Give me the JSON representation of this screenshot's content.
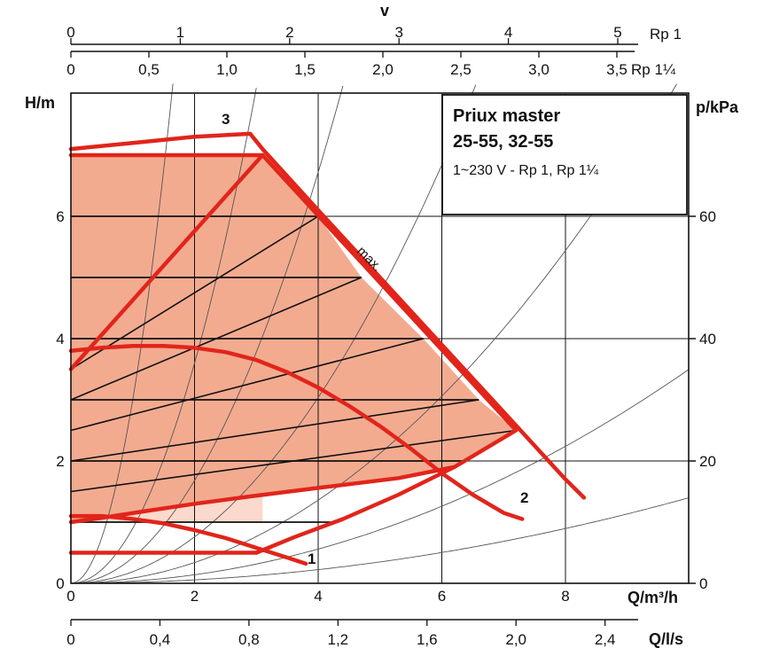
{
  "chart_data": {
    "type": "line",
    "title": "Priux master",
    "subtitle_models": "25-55, 32-55",
    "subtitle_supply": "1~230 V - Rp 1, Rp 1¼",
    "xlabel": "Q/m³/h",
    "xlabel_ls": "Q/l/s",
    "ylabel": "H/m",
    "ylabel_right": "p/kPa",
    "velocity_label": "v",
    "xlim": [
      0,
      10
    ],
    "ylim": [
      0,
      8
    ],
    "grid": true,
    "x_ticks": [
      "0",
      "2",
      "4",
      "6",
      "8"
    ],
    "y_ticks": [
      "0",
      "2",
      "4",
      "6"
    ],
    "kpa_ticks": [
      "0",
      "20",
      "40",
      "60"
    ],
    "ls_ticks": [
      "0",
      "0,4",
      "0,8",
      "1,2",
      "1,6",
      "2,0",
      "2,4"
    ],
    "velocity_rp1": {
      "pipe": "Rp 1",
      "ticks": [
        "0",
        "1",
        "2",
        "3",
        "4",
        "5"
      ]
    },
    "velocity_rp114": {
      "pipe": "Rp 1¼",
      "ticks": [
        "0",
        "0,5",
        "1,0",
        "1,5",
        "2,0",
        "2,5",
        "3,0",
        "3,5"
      ]
    },
    "max_label": "max.",
    "series": [
      {
        "name": "1",
        "x": [
          0,
          0.5,
          1.0,
          1.5,
          2.0,
          2.5,
          3.0,
          3.5,
          3.8
        ],
        "y": [
          1.1,
          1.1,
          1.05,
          0.98,
          0.87,
          0.74,
          0.58,
          0.42,
          0.32
        ]
      },
      {
        "name": "2",
        "x": [
          0,
          0.5,
          1.0,
          1.5,
          2.0,
          2.5,
          3.0,
          3.5,
          4.0,
          4.5,
          5.0,
          5.5,
          6.0,
          6.5,
          7.0,
          7.3
        ],
        "y": [
          3.8,
          3.85,
          3.88,
          3.88,
          3.85,
          3.78,
          3.65,
          3.45,
          3.2,
          2.9,
          2.57,
          2.2,
          1.8,
          1.45,
          1.15,
          1.05
        ]
      },
      {
        "name": "3",
        "x": [
          0,
          1.0,
          2.0,
          2.9,
          3.1,
          4.0,
          5.0,
          6.0,
          7.0,
          8.0,
          8.3
        ],
        "y": [
          7.1,
          7.2,
          7.3,
          7.35,
          7.1,
          6.1,
          5.0,
          3.9,
          2.8,
          1.7,
          1.4
        ]
      }
    ],
    "regulation_envelope": {
      "x": [
        0,
        0,
        3.1,
        4.0,
        4.7,
        5.7,
        6.6,
        7.2,
        6.2,
        5.3,
        4.0,
        2.9,
        2.0,
        1.2,
        0.5,
        0.0
      ],
      "y": [
        1.0,
        7.0,
        7.0,
        6.0,
        5.0,
        4.0,
        3.0,
        2.5,
        1.9,
        1.72,
        1.56,
        1.42,
        1.3,
        1.18,
        1.07,
        1.0
      ]
    },
    "light_zone": {
      "x": [
        0,
        3.1,
        3.1,
        0
      ],
      "y": [
        1.0,
        1.0,
        7.0,
        7.0
      ]
    },
    "control_lines": [
      {
        "x": [
          0,
          4.0
        ],
        "y": [
          3.5,
          6.0
        ]
      },
      {
        "x": [
          0,
          4.7
        ],
        "y": [
          3.0,
          5.0
        ]
      },
      {
        "x": [
          0,
          5.7
        ],
        "y": [
          2.5,
          4.0
        ]
      },
      {
        "x": [
          0,
          6.6
        ],
        "y": [
          2.0,
          3.0
        ]
      },
      {
        "x": [
          0,
          7.2
        ],
        "y": [
          1.5,
          2.5
        ]
      }
    ],
    "horizontal_bars": [
      {
        "x": [
          0,
          3.1
        ],
        "y": [
          7.0,
          7.0
        ]
      },
      {
        "x": [
          0,
          4.0
        ],
        "y": [
          6.0,
          6.0
        ]
      },
      {
        "x": [
          0,
          4.7
        ],
        "y": [
          5.0,
          5.0
        ]
      },
      {
        "x": [
          0,
          5.7
        ],
        "y": [
          4.0,
          4.0
        ]
      },
      {
        "x": [
          0,
          6.6
        ],
        "y": [
          3.0,
          3.0
        ]
      },
      {
        "x": [
          0,
          6.4
        ],
        "y": [
          2.0,
          2.0
        ]
      },
      {
        "x": [
          0,
          4.3
        ],
        "y": [
          1.0,
          1.0
        ]
      }
    ],
    "low_setpoint_line": {
      "x": [
        0,
        3.0
      ],
      "y": [
        0.5,
        0.5
      ]
    },
    "system_curve_coefficients": [
      3.0,
      0.9,
      0.42,
      0.19,
      0.085,
      0.035,
      0.014
    ],
    "colors": {
      "red": "#e1251b",
      "light_fill": "#fbd9cc",
      "dark_fill": "#f3ab90",
      "grid": "#111111",
      "thin_curve": "#555555"
    }
  }
}
